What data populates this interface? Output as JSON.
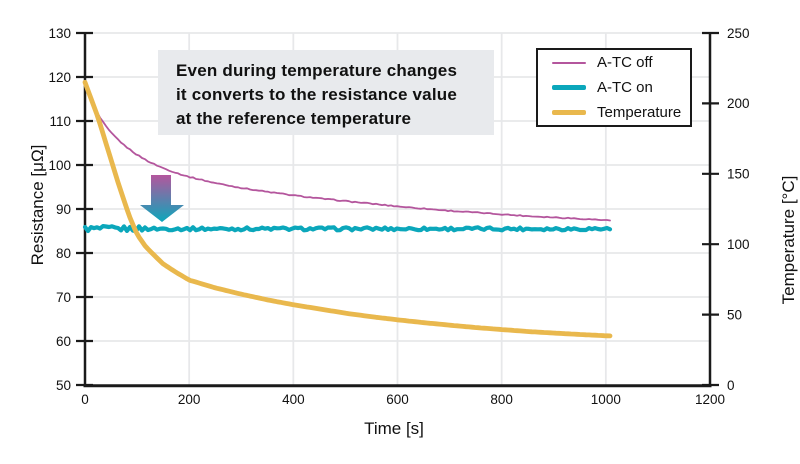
{
  "annotation": {
    "lines": [
      "Even during temperature changes",
      "it converts to the resistance value",
      "at the reference temperature"
    ],
    "bg_color": "#e8eaed",
    "text_color": "#111111"
  },
  "legend": {
    "items": [
      {
        "label": "A-TC off",
        "color": "#b4569d",
        "thickness": 2
      },
      {
        "label": "A-TC on",
        "color": "#0ba7bb",
        "thickness": 5
      },
      {
        "label": "Temperature",
        "color": "#e9b84d",
        "thickness": 5
      }
    ],
    "border_color": "#1a1a1a",
    "position": "top-right"
  },
  "colors": {
    "grid": "#e7e8ea",
    "axis": "#1a1a1a",
    "text": "#111111"
  },
  "chart_data": {
    "type": "line",
    "title": "",
    "xlabel": "Time [s]",
    "ylabel_left": "Resistance [μΩ]",
    "ylabel_right": "Temperature [°C]",
    "x_range": [
      0,
      1200
    ],
    "x_ticks": [
      0,
      200,
      400,
      600,
      800,
      1000,
      1200
    ],
    "y_left_range": [
      50,
      130
    ],
    "y_left_ticks": [
      50,
      60,
      70,
      80,
      90,
      100,
      110,
      120,
      130
    ],
    "y_right_range": [
      0,
      250
    ],
    "y_right_ticks": [
      0,
      50,
      100,
      150,
      200,
      250
    ],
    "grid": true,
    "legend_position": "top-right",
    "series": [
      {
        "name": "A-TC off",
        "axis": "left",
        "unit": "μΩ",
        "color": "#b4569d",
        "width": 1.8,
        "noise": 0.12,
        "x": [
          0,
          10,
          20,
          30,
          40,
          50,
          75,
          100,
          125,
          150,
          175,
          200,
          250,
          300,
          350,
          400,
          450,
          500,
          550,
          600,
          650,
          700,
          750,
          800,
          850,
          900,
          950,
          1010
        ],
        "y": [
          118.5,
          115.2,
          112.6,
          110.5,
          108.8,
          107.3,
          104.5,
          102.3,
          100.6,
          99.3,
          98.2,
          97.3,
          95.9,
          94.8,
          93.9,
          93.1,
          92.4,
          91.8,
          91.2,
          90.6,
          90.1,
          89.6,
          89.2,
          88.8,
          88.4,
          88.1,
          87.8,
          87.4
        ]
      },
      {
        "name": "A-TC on",
        "axis": "left",
        "unit": "μΩ",
        "color": "#0ba7bb",
        "width": 4.2,
        "noise": 0.35,
        "x": [
          0,
          1010
        ],
        "y": [
          85.5,
          85.5
        ]
      },
      {
        "name": "Temperature",
        "axis": "right",
        "unit": "°C",
        "color": "#e9b84d",
        "width": 4.8,
        "noise": 0,
        "x": [
          0,
          15,
          25,
          40,
          50,
          65,
          75,
          85,
          100,
          115,
          125,
          150,
          175,
          200,
          250,
          300,
          350,
          400,
          450,
          500,
          550,
          600,
          650,
          700,
          750,
          800,
          850,
          900,
          950,
          1010
        ],
        "y": [
          215,
          200,
          190,
          172,
          160,
          142,
          131,
          120,
          107,
          99,
          95,
          86,
          80,
          74.5,
          69,
          64.5,
          60.5,
          57,
          54,
          51,
          48.5,
          46.3,
          44.3,
          42.5,
          40.8,
          39.4,
          38,
          36.9,
          35.9,
          34.8
        ]
      }
    ],
    "arrow": {
      "from_color": "#b4569d",
      "to_color": "#0ba7bb"
    }
  }
}
